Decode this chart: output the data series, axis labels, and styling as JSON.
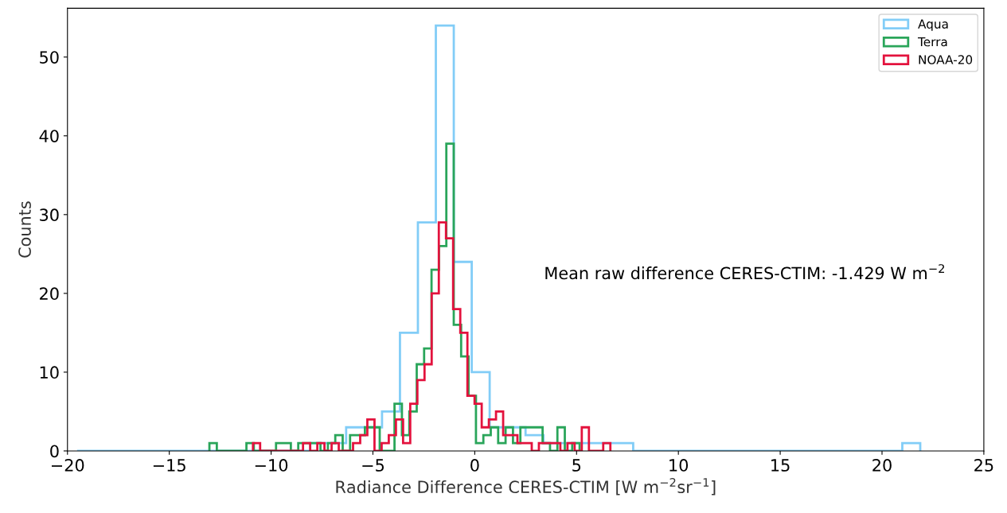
{
  "chart_data": {
    "type": "histogram",
    "xlabel": "Radiance Difference CERES-CTIM [W m$^{−2}$sr$^{−1}$]",
    "ylabel": "Counts",
    "xlim": [
      -20,
      25
    ],
    "xticks": [
      {
        "value": -20,
        "label": "−20"
      },
      {
        "value": -15,
        "label": "−15"
      },
      {
        "value": -10,
        "label": "−10"
      },
      {
        "value": -5,
        "label": "−5"
      },
      0,
      5,
      10,
      15,
      20,
      25
    ],
    "ylim": [
      0,
      56.2
    ],
    "yticks": [
      0,
      10,
      20,
      30,
      40,
      50
    ],
    "grid": false,
    "legend": "top right",
    "annotations": [
      "Mean raw difference CERES-CTIM: -1.429 W m$^{−2}$"
    ],
    "bins": [
      -19.53,
      -18.649,
      -17.768,
      -16.887,
      -16.006,
      -15.125,
      -14.244,
      -13.363,
      -12.482,
      -11.601,
      -10.72,
      -9.839,
      -8.958,
      -8.077,
      -7.196,
      -6.315,
      -5.434,
      -4.553,
      -3.672,
      -2.791,
      -1.91,
      -1.029,
      -0.148,
      0.733,
      1.614,
      2.495,
      3.376,
      4.257,
      5.138,
      6.019,
      6.9,
      7.781,
      8.662,
      9.543,
      10.424,
      11.305,
      12.186,
      13.067,
      13.948,
      14.829,
      15.71,
      16.591,
      17.472,
      18.353,
      19.234,
      20.115,
      20.996,
      21.877
    ],
    "series": [
      {
        "name": "Aqua",
        "color": "#82cdf7",
        "values": [
          0,
          0,
          0,
          0,
          0,
          0,
          0,
          0,
          0,
          0,
          0,
          0,
          0,
          1,
          1,
          3,
          3,
          5,
          15,
          29,
          54,
          24,
          10,
          3,
          3,
          2,
          1,
          1,
          1,
          1,
          1,
          0,
          0,
          0,
          0,
          0,
          0,
          0,
          0,
          0,
          0,
          0,
          0,
          0,
          0,
          0,
          1
        ]
      },
      {
        "name": "Terra",
        "color": "#2aa55a",
        "bins": [
          -13.03,
          -12.666,
          -12.303,
          -11.939,
          -11.576,
          -11.212,
          -10.848,
          -10.485,
          -10.121,
          -9.758,
          -9.394,
          -9.03,
          -8.667,
          -8.303,
          -7.94,
          -7.576,
          -7.212,
          -6.849,
          -6.485,
          -6.122,
          -5.758,
          -5.394,
          -5.031,
          -4.667,
          -4.304,
          -3.94,
          -3.576,
          -3.213,
          -2.849,
          -2.486,
          -2.122,
          -1.758,
          -1.395,
          -1.031,
          -0.668,
          -0.304,
          0.06,
          0.423,
          0.787,
          1.15,
          1.514,
          1.878,
          2.241,
          2.605,
          2.968,
          3.332,
          3.696,
          4.059,
          4.423,
          4.786,
          5.15
        ],
        "values": [
          1,
          0,
          0,
          0,
          0,
          1,
          0,
          0,
          0,
          1,
          1,
          0,
          1,
          1,
          1,
          0,
          1,
          2,
          0,
          2,
          2,
          3,
          3,
          0,
          0,
          6,
          2,
          5,
          11,
          13,
          23,
          26,
          39,
          16,
          12,
          7,
          1,
          2,
          3,
          1,
          3,
          1,
          3,
          3,
          3,
          1,
          0,
          3,
          0,
          1
        ]
      },
      {
        "name": "NOAA-20",
        "color": "#e3123d",
        "bins": [
          -10.89,
          -10.539,
          -10.188,
          -9.837,
          -9.486,
          -9.135,
          -8.784,
          -8.433,
          -8.082,
          -7.731,
          -7.38,
          -7.029,
          -6.678,
          -6.327,
          -5.976,
          -5.625,
          -5.274,
          -4.923,
          -4.572,
          -4.221,
          -3.87,
          -3.519,
          -3.168,
          -2.817,
          -2.466,
          -2.115,
          -1.764,
          -1.413,
          -1.062,
          -0.711,
          -0.36,
          -0.009,
          0.342,
          0.693,
          1.044,
          1.395,
          1.746,
          2.097,
          2.448,
          2.799,
          3.15,
          3.501,
          3.852,
          4.203,
          4.554,
          4.905,
          5.256,
          5.607,
          5.958,
          6.309,
          6.66
        ],
        "values": [
          1,
          0,
          0,
          0,
          0,
          0,
          0,
          1,
          0,
          1,
          0,
          1,
          0,
          0,
          1,
          2,
          4,
          0,
          1,
          2,
          4,
          1,
          6,
          9,
          11,
          20,
          29,
          27,
          18,
          15,
          7,
          6,
          3,
          4,
          5,
          2,
          2,
          1,
          1,
          0,
          1,
          1,
          1,
          0,
          1,
          0,
          3,
          0,
          0,
          1
        ]
      }
    ]
  }
}
